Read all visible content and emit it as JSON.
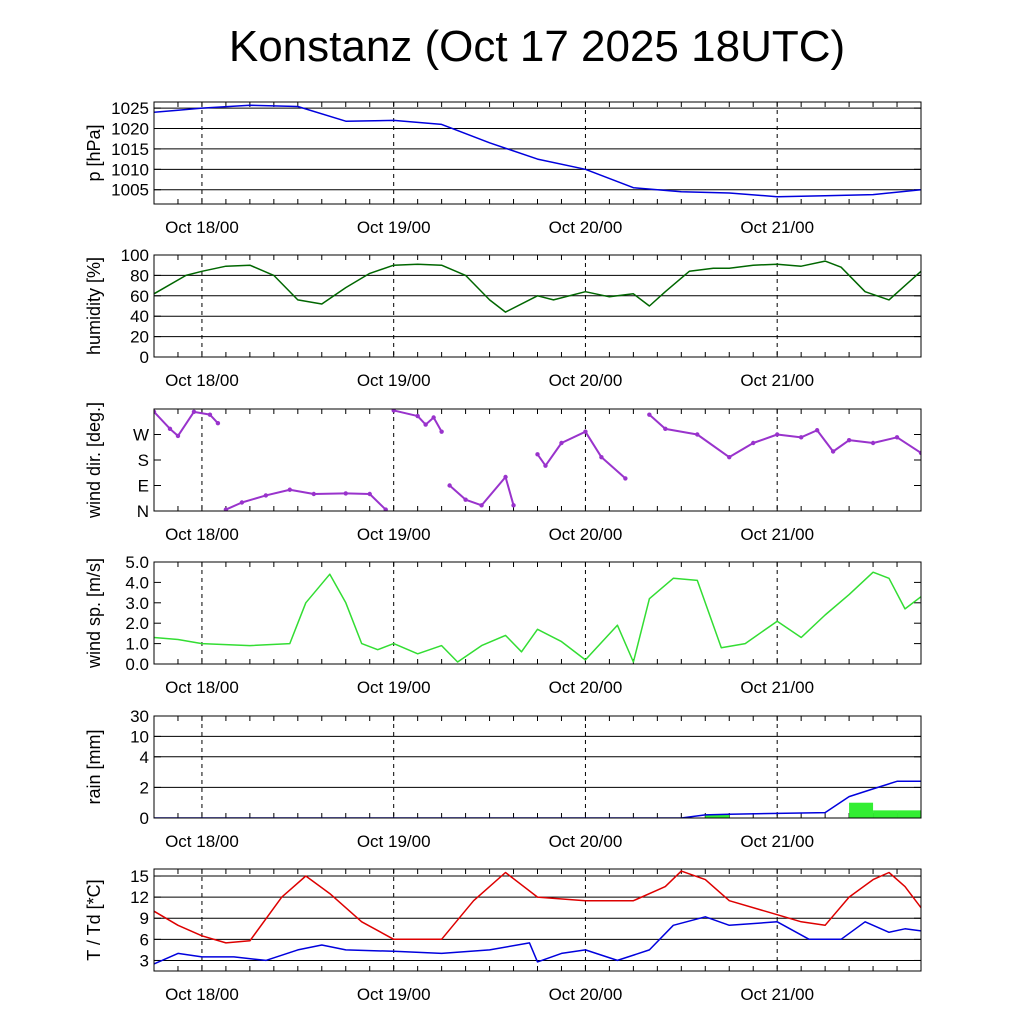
{
  "title": "Konstanz (Oct 17 2025 18UTC)",
  "time_axis": {
    "range": [
      "2025-10-17T18:00Z",
      "2025-10-21T18:00Z"
    ],
    "date_labels": [
      "Oct 18/00",
      "Oct 19/00",
      "Oct 20/00",
      "Oct 21/00"
    ],
    "date_label_times": [
      "2025-10-18T00:00Z",
      "2025-10-19T00:00Z",
      "2025-10-20T00:00Z",
      "2025-10-21T00:00Z"
    ],
    "minor_tick_hours": 3
  },
  "chart_data": [
    {
      "id": "pressure",
      "type": "line",
      "ylabel": "p [hPa]",
      "ylim": [
        1001.5,
        1026.5
      ],
      "yticks": [
        1005,
        1010,
        1015,
        1020,
        1025
      ],
      "ytick_labels": [
        "1005",
        "1010",
        "1015",
        "1020",
        "1025"
      ],
      "grid": "horizontal",
      "series": [
        {
          "color": "#0000dd",
          "points": [
            [
              "2025-10-17T18:00Z",
              1024.0
            ],
            [
              "2025-10-17T21:00Z",
              1024.5
            ],
            [
              "2025-10-18T00:00Z",
              1025.0
            ],
            [
              "2025-10-18T06:00Z",
              1025.7
            ],
            [
              "2025-10-18T12:00Z",
              1025.4
            ],
            [
              "2025-10-18T18:00Z",
              1021.8
            ],
            [
              "2025-10-19T00:00Z",
              1022.0
            ],
            [
              "2025-10-19T06:00Z",
              1021.0
            ],
            [
              "2025-10-19T12:00Z",
              1016.5
            ],
            [
              "2025-10-19T18:00Z",
              1012.5
            ],
            [
              "2025-10-20T00:00Z",
              1010.0
            ],
            [
              "2025-10-20T06:00Z",
              1005.5
            ],
            [
              "2025-10-20T12:00Z",
              1004.5
            ],
            [
              "2025-10-20T18:00Z",
              1004.2
            ],
            [
              "2025-10-21T00:00Z",
              1003.3
            ],
            [
              "2025-10-21T06:00Z",
              1003.5
            ],
            [
              "2025-10-21T12:00Z",
              1003.8
            ],
            [
              "2025-10-21T18:00Z",
              1005.0
            ]
          ]
        }
      ]
    },
    {
      "id": "humidity",
      "type": "line",
      "ylabel": "humidity [%]",
      "ylim": [
        0,
        100
      ],
      "yticks": [
        0,
        20,
        40,
        60,
        80,
        100
      ],
      "ytick_labels": [
        "0",
        "20",
        "40",
        "60",
        "80",
        "100"
      ],
      "grid": "horizontal",
      "series": [
        {
          "color": "#006600",
          "points": [
            [
              "2025-10-17T18:00Z",
              62
            ],
            [
              "2025-10-17T22:00Z",
              80
            ],
            [
              "2025-10-18T00:00Z",
              84
            ],
            [
              "2025-10-18T03:00Z",
              89
            ],
            [
              "2025-10-18T06:00Z",
              90
            ],
            [
              "2025-10-18T09:00Z",
              80
            ],
            [
              "2025-10-18T12:00Z",
              56
            ],
            [
              "2025-10-18T15:00Z",
              52
            ],
            [
              "2025-10-18T18:00Z",
              68
            ],
            [
              "2025-10-18T21:00Z",
              82
            ],
            [
              "2025-10-19T00:00Z",
              90
            ],
            [
              "2025-10-19T03:00Z",
              91
            ],
            [
              "2025-10-19T06:00Z",
              90
            ],
            [
              "2025-10-19T09:00Z",
              80
            ],
            [
              "2025-10-19T12:00Z",
              56
            ],
            [
              "2025-10-19T14:00Z",
              44
            ],
            [
              "2025-10-19T18:00Z",
              60
            ],
            [
              "2025-10-19T20:00Z",
              56
            ],
            [
              "2025-10-20T00:00Z",
              64
            ],
            [
              "2025-10-20T03:00Z",
              59
            ],
            [
              "2025-10-20T06:00Z",
              62
            ],
            [
              "2025-10-20T08:00Z",
              50
            ],
            [
              "2025-10-20T10:00Z",
              64
            ],
            [
              "2025-10-20T13:00Z",
              84
            ],
            [
              "2025-10-20T16:00Z",
              87
            ],
            [
              "2025-10-20T18:00Z",
              87
            ],
            [
              "2025-10-20T21:00Z",
              90
            ],
            [
              "2025-10-21T00:00Z",
              91
            ],
            [
              "2025-10-21T03:00Z",
              89
            ],
            [
              "2025-10-21T06:00Z",
              94
            ],
            [
              "2025-10-21T08:00Z",
              88
            ],
            [
              "2025-10-21T11:00Z",
              64
            ],
            [
              "2025-10-21T14:00Z",
              56
            ],
            [
              "2025-10-21T16:00Z",
              70
            ],
            [
              "2025-10-21T18:00Z",
              84
            ]
          ]
        }
      ]
    },
    {
      "id": "wind-direction",
      "type": "scatter",
      "ylabel": "wind dir. [deg.]",
      "ylim": [
        0,
        360
      ],
      "yticks": [
        0,
        90,
        180,
        270
      ],
      "ytick_labels": [
        "N",
        "E",
        "S",
        "W"
      ],
      "grid": "none",
      "series": [
        {
          "color": "#9933cc",
          "points": [
            [
              "2025-10-17T18:00Z",
              350
            ],
            [
              "2025-10-17T20:00Z",
              290
            ],
            [
              "2025-10-17T21:00Z",
              265
            ],
            [
              "2025-10-17T23:00Z",
              350
            ],
            [
              "2025-10-18T01:00Z",
              340
            ],
            [
              "2025-10-18T02:00Z",
              310
            ],
            [
              "2025-10-18T03:00Z",
              5
            ],
            [
              "2025-10-18T05:00Z",
              30
            ],
            [
              "2025-10-18T08:00Z",
              55
            ],
            [
              "2025-10-18T11:00Z",
              75
            ],
            [
              "2025-10-18T14:00Z",
              60
            ],
            [
              "2025-10-18T18:00Z",
              62
            ],
            [
              "2025-10-18T21:00Z",
              60
            ],
            [
              "2025-10-18T23:00Z",
              5
            ],
            [
              "2025-10-19T00:00Z",
              355
            ],
            [
              "2025-10-19T03:00Z",
              335
            ],
            [
              "2025-10-19T04:00Z",
              305
            ],
            [
              "2025-10-19T05:00Z",
              330
            ],
            [
              "2025-10-19T06:00Z",
              280
            ],
            [
              "2025-10-19T07:00Z",
              90
            ],
            [
              "2025-10-19T09:00Z",
              40
            ],
            [
              "2025-10-19T11:00Z",
              20
            ],
            [
              "2025-10-19T14:00Z",
              120
            ],
            [
              "2025-10-19T15:00Z",
              20
            ],
            [
              "2025-10-19T18:00Z",
              200
            ],
            [
              "2025-10-19T19:00Z",
              160
            ],
            [
              "2025-10-19T21:00Z",
              240
            ],
            [
              "2025-10-20T00:00Z",
              280
            ],
            [
              "2025-10-20T02:00Z",
              190
            ],
            [
              "2025-10-20T05:00Z",
              115
            ],
            [
              "2025-10-20T08:00Z",
              340
            ],
            [
              "2025-10-20T10:00Z",
              290
            ],
            [
              "2025-10-20T14:00Z",
              270
            ],
            [
              "2025-10-20T18:00Z",
              190
            ],
            [
              "2025-10-20T21:00Z",
              240
            ],
            [
              "2025-10-21T00:00Z",
              270
            ],
            [
              "2025-10-21T03:00Z",
              260
            ],
            [
              "2025-10-21T05:00Z",
              285
            ],
            [
              "2025-10-21T07:00Z",
              210
            ],
            [
              "2025-10-21T09:00Z",
              250
            ],
            [
              "2025-10-21T12:00Z",
              240
            ],
            [
              "2025-10-21T15:00Z",
              260
            ],
            [
              "2025-10-21T18:00Z",
              205
            ]
          ]
        }
      ]
    },
    {
      "id": "wind-speed",
      "type": "line",
      "ylabel": "wind sp. [m/s]",
      "ylim": [
        0,
        5
      ],
      "yticks": [
        0,
        1,
        2,
        3,
        4,
        5
      ],
      "ytick_labels": [
        "0.0",
        "1.0",
        "2.0",
        "3.0",
        "4.0",
        "5.0"
      ],
      "grid": "none",
      "series": [
        {
          "color": "#33dd33",
          "points": [
            [
              "2025-10-17T18:00Z",
              1.3
            ],
            [
              "2025-10-17T21:00Z",
              1.2
            ],
            [
              "2025-10-18T00:00Z",
              1.0
            ],
            [
              "2025-10-18T06:00Z",
              0.9
            ],
            [
              "2025-10-18T11:00Z",
              1.0
            ],
            [
              "2025-10-18T13:00Z",
              3.0
            ],
            [
              "2025-10-18T16:00Z",
              4.4
            ],
            [
              "2025-10-18T18:00Z",
              3.0
            ],
            [
              "2025-10-18T20:00Z",
              1.0
            ],
            [
              "2025-10-18T22:00Z",
              0.7
            ],
            [
              "2025-10-19T00:00Z",
              1.0
            ],
            [
              "2025-10-19T03:00Z",
              0.5
            ],
            [
              "2025-10-19T06:00Z",
              0.9
            ],
            [
              "2025-10-19T08:00Z",
              0.1
            ],
            [
              "2025-10-19T11:00Z",
              0.9
            ],
            [
              "2025-10-19T14:00Z",
              1.4
            ],
            [
              "2025-10-19T16:00Z",
              0.6
            ],
            [
              "2025-10-19T18:00Z",
              1.7
            ],
            [
              "2025-10-19T21:00Z",
              1.1
            ],
            [
              "2025-10-20T00:00Z",
              0.2
            ],
            [
              "2025-10-20T04:00Z",
              1.9
            ],
            [
              "2025-10-20T06:00Z",
              0.1
            ],
            [
              "2025-10-20T08:00Z",
              3.2
            ],
            [
              "2025-10-20T11:00Z",
              4.2
            ],
            [
              "2025-10-20T14:00Z",
              4.1
            ],
            [
              "2025-10-20T17:00Z",
              0.8
            ],
            [
              "2025-10-20T20:00Z",
              1.0
            ],
            [
              "2025-10-21T00:00Z",
              2.1
            ],
            [
              "2025-10-21T03:00Z",
              1.3
            ],
            [
              "2025-10-21T06:00Z",
              2.4
            ],
            [
              "2025-10-21T09:00Z",
              3.4
            ],
            [
              "2025-10-21T12:00Z",
              4.5
            ],
            [
              "2025-10-21T14:00Z",
              4.2
            ],
            [
              "2025-10-21T16:00Z",
              2.7
            ],
            [
              "2025-10-21T18:00Z",
              3.3
            ]
          ]
        }
      ]
    },
    {
      "id": "rain",
      "type": "bar",
      "ylabel": "rain [mm]",
      "yscale": "nonlinear",
      "yticks": [
        0,
        2,
        4,
        10,
        30
      ],
      "ytick_labels": [
        "0",
        "2",
        "4",
        "10",
        "30"
      ],
      "grid": "horizontal",
      "series": [
        {
          "kind": "bar",
          "color": "#33ee33",
          "bar_hours": 3,
          "points": [
            [
              "2025-10-20T15:00Z",
              0.2
            ],
            [
              "2025-10-21T09:00Z",
              1.0
            ],
            [
              "2025-10-21T12:00Z",
              0.5
            ],
            [
              "2025-10-21T15:00Z",
              0.5
            ]
          ]
        },
        {
          "kind": "line",
          "color": "#0000dd",
          "points": [
            [
              "2025-10-17T18:00Z",
              0.0
            ],
            [
              "2025-10-20T12:00Z",
              0.0
            ],
            [
              "2025-10-20T15:00Z",
              0.2
            ],
            [
              "2025-10-20T18:00Z",
              0.25
            ],
            [
              "2025-10-21T06:00Z",
              0.35
            ],
            [
              "2025-10-21T09:00Z",
              1.4
            ],
            [
              "2025-10-21T12:00Z",
              1.9
            ],
            [
              "2025-10-21T15:00Z",
              2.4
            ],
            [
              "2025-10-21T18:00Z",
              2.4
            ]
          ]
        }
      ]
    },
    {
      "id": "temperature",
      "type": "line",
      "ylabel": "T / Td [*C]",
      "ylim": [
        1.5,
        16
      ],
      "yticks": [
        3,
        6,
        9,
        12,
        15
      ],
      "ytick_labels": [
        "3",
        "6",
        "9",
        "12",
        "15"
      ],
      "grid": "horizontal",
      "series": [
        {
          "color": "#dd0000",
          "points": [
            [
              "2025-10-17T18:00Z",
              10.0
            ],
            [
              "2025-10-17T21:00Z",
              8.0
            ],
            [
              "2025-10-18T00:00Z",
              6.5
            ],
            [
              "2025-10-18T03:00Z",
              5.5
            ],
            [
              "2025-10-18T06:00Z",
              5.8
            ],
            [
              "2025-10-18T10:00Z",
              12.0
            ],
            [
              "2025-10-18T13:00Z",
              15.0
            ],
            [
              "2025-10-18T16:00Z",
              12.5
            ],
            [
              "2025-10-18T20:00Z",
              8.5
            ],
            [
              "2025-10-19T00:00Z",
              6.0
            ],
            [
              "2025-10-19T06:00Z",
              6.0
            ],
            [
              "2025-10-19T10:00Z",
              11.5
            ],
            [
              "2025-10-19T14:00Z",
              15.5
            ],
            [
              "2025-10-19T18:00Z",
              12.0
            ],
            [
              "2025-10-20T00:00Z",
              11.5
            ],
            [
              "2025-10-20T06:00Z",
              11.5
            ],
            [
              "2025-10-20T10:00Z",
              13.5
            ],
            [
              "2025-10-20T12:00Z",
              15.7
            ],
            [
              "2025-10-20T15:00Z",
              14.5
            ],
            [
              "2025-10-20T18:00Z",
              11.5
            ],
            [
              "2025-10-21T00:00Z",
              9.5
            ],
            [
              "2025-10-21T03:00Z",
              8.5
            ],
            [
              "2025-10-21T06:00Z",
              8.0
            ],
            [
              "2025-10-21T09:00Z",
              12.0
            ],
            [
              "2025-10-21T12:00Z",
              14.5
            ],
            [
              "2025-10-21T14:00Z",
              15.5
            ],
            [
              "2025-10-21T16:00Z",
              13.5
            ],
            [
              "2025-10-21T18:00Z",
              10.5
            ]
          ]
        },
        {
          "color": "#0000dd",
          "points": [
            [
              "2025-10-17T18:00Z",
              2.5
            ],
            [
              "2025-10-17T21:00Z",
              4.0
            ],
            [
              "2025-10-18T00:00Z",
              3.5
            ],
            [
              "2025-10-18T04:00Z",
              3.5
            ],
            [
              "2025-10-18T08:00Z",
              3.0
            ],
            [
              "2025-10-18T12:00Z",
              4.5
            ],
            [
              "2025-10-18T15:00Z",
              5.2
            ],
            [
              "2025-10-18T18:00Z",
              4.5
            ],
            [
              "2025-10-19T00:00Z",
              4.3
            ],
            [
              "2025-10-19T06:00Z",
              4.0
            ],
            [
              "2025-10-19T12:00Z",
              4.5
            ],
            [
              "2025-10-19T17:00Z",
              5.5
            ],
            [
              "2025-10-19T18:00Z",
              2.8
            ],
            [
              "2025-10-19T21:00Z",
              4.0
            ],
            [
              "2025-10-20T00:00Z",
              4.5
            ],
            [
              "2025-10-20T04:00Z",
              3.0
            ],
            [
              "2025-10-20T08:00Z",
              4.5
            ],
            [
              "2025-10-20T11:00Z",
              8.0
            ],
            [
              "2025-10-20T15:00Z",
              9.2
            ],
            [
              "2025-10-20T18:00Z",
              8.0
            ],
            [
              "2025-10-21T00:00Z",
              8.5
            ],
            [
              "2025-10-21T04:00Z",
              6.0
            ],
            [
              "2025-10-21T08:00Z",
              6.0
            ],
            [
              "2025-10-21T11:00Z",
              8.5
            ],
            [
              "2025-10-21T14:00Z",
              7.0
            ],
            [
              "2025-10-21T16:00Z",
              7.5
            ],
            [
              "2025-10-21T18:00Z",
              7.2
            ]
          ]
        }
      ]
    }
  ]
}
